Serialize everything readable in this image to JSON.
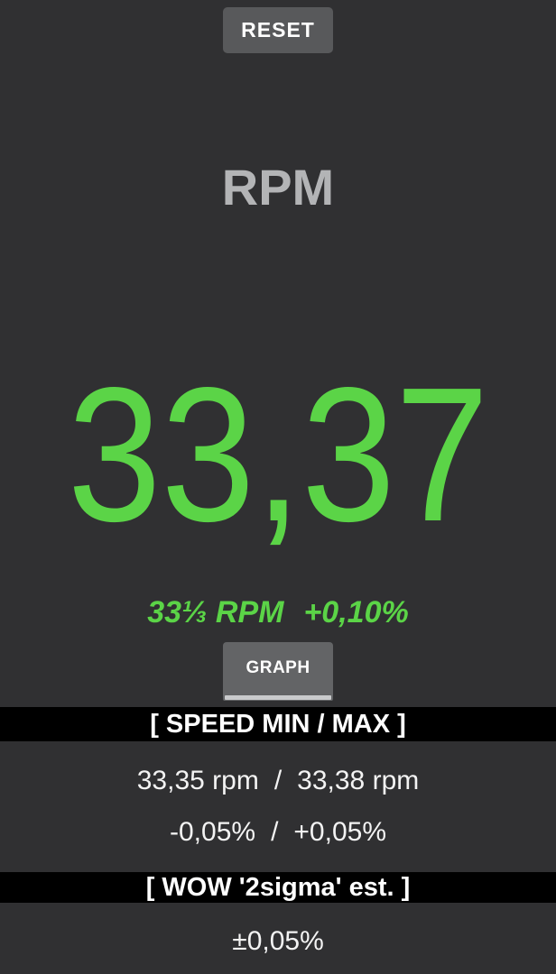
{
  "colors": {
    "background": "#303032",
    "accent_green": "#5bd447",
    "section_bar_black": "#000000",
    "reset_button_gray": "#58595b",
    "graph_button_gray": "#636466",
    "title_gray": "#b3b4b6",
    "text_white": "#f3f3f3",
    "tab_indicator_gray": "#c9cacc"
  },
  "toolbar": {
    "reset_label": "RESET"
  },
  "measurement": {
    "title": "RPM",
    "value": "33,37",
    "nominal": "33⅓ RPM",
    "deviation": "+0,10%"
  },
  "graph": {
    "button_label": "GRAPH"
  },
  "speed_minmax": {
    "header": "[ SPEED MIN / MAX ]",
    "min_rpm": "33,35 rpm",
    "max_rpm": "33,38 rpm",
    "separator": "/",
    "min_pct": "-0,05%",
    "max_pct": "+0,05%"
  },
  "wow": {
    "header": "[ WOW '2sigma' est. ]",
    "value": "±0,05%"
  }
}
